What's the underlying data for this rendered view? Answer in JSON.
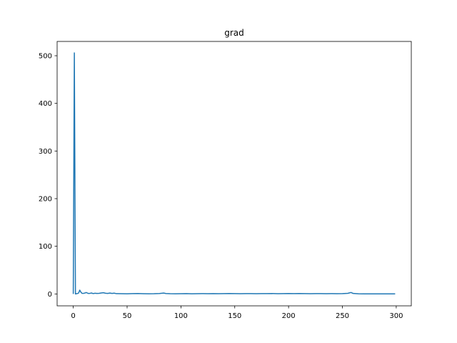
{
  "chart_data": {
    "type": "line",
    "title": "grad",
    "xlabel": "",
    "ylabel": "",
    "xlim": [
      -15,
      314
    ],
    "ylim": [
      -25,
      530
    ],
    "grid": false,
    "x_ticks": [
      0,
      50,
      100,
      150,
      200,
      250,
      300
    ],
    "y_ticks": [
      0,
      100,
      200,
      300,
      400,
      500
    ],
    "line_color": "#1f77b4",
    "series": [
      {
        "points": [
          [
            0,
            0
          ],
          [
            1,
            506
          ],
          [
            2,
            0
          ],
          [
            3,
            0.5
          ],
          [
            4,
            1
          ],
          [
            5,
            2
          ],
          [
            6,
            8
          ],
          [
            7,
            4
          ],
          [
            8,
            1.5
          ],
          [
            9,
            1
          ],
          [
            10,
            1.5
          ],
          [
            11,
            2
          ],
          [
            12,
            3
          ],
          [
            13,
            2
          ],
          [
            14,
            1
          ],
          [
            15,
            1
          ],
          [
            16,
            1.5
          ],
          [
            17,
            2
          ],
          [
            18,
            1
          ],
          [
            19,
            0.8
          ],
          [
            20,
            1.5
          ],
          [
            22,
            1
          ],
          [
            24,
            1.2
          ],
          [
            26,
            2
          ],
          [
            28,
            2.5
          ],
          [
            30,
            1.5
          ],
          [
            32,
            1
          ],
          [
            34,
            1.8
          ],
          [
            36,
            1
          ],
          [
            38,
            1.6
          ],
          [
            40,
            0.6
          ],
          [
            45,
            0.5
          ],
          [
            50,
            0.4
          ],
          [
            55,
            0.6
          ],
          [
            60,
            0.8
          ],
          [
            65,
            0.5
          ],
          [
            70,
            0.4
          ],
          [
            75,
            0.5
          ],
          [
            80,
            0.9
          ],
          [
            84,
            1.8
          ],
          [
            86,
            0.9
          ],
          [
            90,
            0.5
          ],
          [
            95,
            0.4
          ],
          [
            100,
            0.5
          ],
          [
            105,
            0.6
          ],
          [
            110,
            0.4
          ],
          [
            115,
            0.5
          ],
          [
            120,
            0.6
          ],
          [
            125,
            0.5
          ],
          [
            130,
            0.7
          ],
          [
            135,
            0.5
          ],
          [
            140,
            0.6
          ],
          [
            145,
            0.8
          ],
          [
            150,
            0.6
          ],
          [
            155,
            0.5
          ],
          [
            160,
            0.7
          ],
          [
            165,
            0.6
          ],
          [
            170,
            0.5
          ],
          [
            175,
            0.7
          ],
          [
            180,
            0.6
          ],
          [
            185,
            0.8
          ],
          [
            190,
            0.5
          ],
          [
            195,
            0.7
          ],
          [
            200,
            0.8
          ],
          [
            205,
            0.6
          ],
          [
            210,
            0.9
          ],
          [
            215,
            0.6
          ],
          [
            220,
            0.5
          ],
          [
            225,
            0.6
          ],
          [
            230,
            0.7
          ],
          [
            235,
            0.5
          ],
          [
            240,
            0.6
          ],
          [
            245,
            0.5
          ],
          [
            250,
            0.6
          ],
          [
            255,
            1.2
          ],
          [
            258,
            3
          ],
          [
            260,
            1
          ],
          [
            265,
            0.3
          ],
          [
            270,
            0.2
          ],
          [
            275,
            0.2
          ],
          [
            280,
            0.1
          ],
          [
            285,
            0.1
          ],
          [
            290,
            0.1
          ],
          [
            295,
            0.1
          ],
          [
            299,
            0.1
          ]
        ]
      }
    ]
  }
}
